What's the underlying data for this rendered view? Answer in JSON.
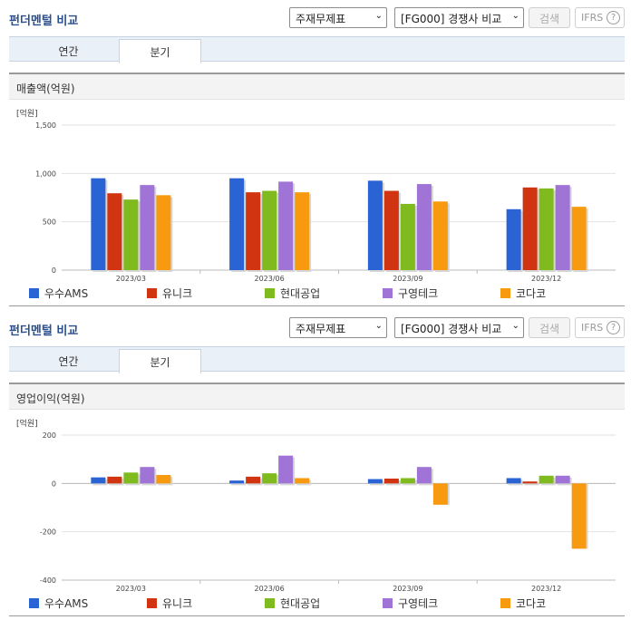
{
  "sections": [
    {
      "title": "펀더멘털 비교",
      "select_statement": "주재무제표",
      "select_peer": "[FG000] 경쟁사 비교",
      "search_label": "검색",
      "ifrs_label": "IFRS",
      "help_symbol": "?",
      "tabs": [
        "연간",
        "분기"
      ],
      "active_tab": "분기",
      "chart_title": "매출액(억원)",
      "unit": "[억원]"
    },
    {
      "title": "펀더멘털 비교",
      "select_statement": "주재무제표",
      "select_peer": "[FG000] 경쟁사 비교",
      "search_label": "검색",
      "ifrs_label": "IFRS",
      "help_symbol": "?",
      "tabs": [
        "연간",
        "분기"
      ],
      "active_tab": "분기",
      "chart_title": "영업이익(억원)",
      "unit": "[억원]"
    }
  ],
  "colors": {
    "우수AMS": "#2a63d4",
    "유니크": "#d03410",
    "현대공업": "#7fbb1e",
    "구영테크": "#9f74d6",
    "코다코": "#f79a10"
  },
  "chart_data": [
    {
      "type": "bar",
      "title": "매출액(억원)",
      "categories": [
        "2023/03",
        "2023/06",
        "2023/09",
        "2023/12"
      ],
      "ylim": [
        0,
        1500
      ],
      "yticks": [
        0,
        500,
        1000,
        1500
      ],
      "ytick_labels": [
        "0",
        "500",
        "1,000",
        "1,500"
      ],
      "grid": true,
      "legend": "bottom",
      "series": [
        {
          "name": "우수AMS",
          "values": [
            950,
            950,
            925,
            630
          ]
        },
        {
          "name": "유니크",
          "values": [
            795,
            805,
            820,
            855
          ]
        },
        {
          "name": "현대공업",
          "values": [
            730,
            820,
            685,
            845
          ]
        },
        {
          "name": "구영테크",
          "values": [
            880,
            915,
            890,
            880
          ]
        },
        {
          "name": "코다코",
          "values": [
            775,
            805,
            710,
            655
          ]
        }
      ]
    },
    {
      "type": "bar",
      "title": "영업이익(억원)",
      "categories": [
        "2023/03",
        "2023/06",
        "2023/09",
        "2023/12"
      ],
      "ylim": [
        -400,
        200
      ],
      "yticks": [
        -400,
        -200,
        0,
        200
      ],
      "ytick_labels": [
        "-400",
        "-200",
        "0",
        "200"
      ],
      "grid": true,
      "legend": "bottom",
      "series": [
        {
          "name": "우수AMS",
          "values": [
            25,
            12,
            18,
            22
          ]
        },
        {
          "name": "유니크",
          "values": [
            28,
            28,
            20,
            8
          ]
        },
        {
          "name": "현대공업",
          "values": [
            45,
            42,
            22,
            32
          ]
        },
        {
          "name": "구영테크",
          "values": [
            68,
            115,
            68,
            32
          ]
        },
        {
          "name": "코다코",
          "values": [
            35,
            22,
            -88,
            -270
          ]
        }
      ]
    }
  ]
}
